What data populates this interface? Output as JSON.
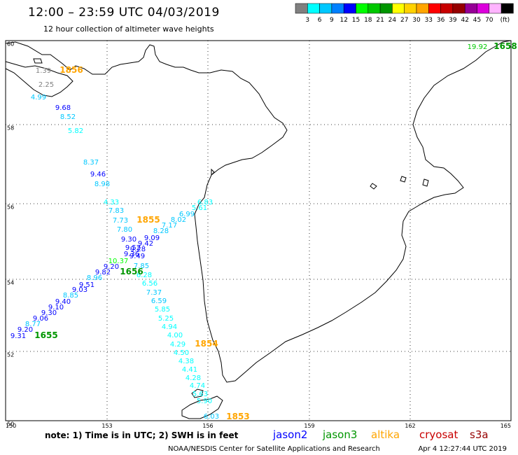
{
  "header": {
    "title": "12:00  –  23:59  UTC  04/03/2019",
    "subtitle": "12 hour collection of altimeter wave heights"
  },
  "legend": {
    "unit": "(ft)",
    "bins": [
      {
        "color": "#808080",
        "label": ""
      },
      {
        "color": "#00ffff",
        "label": "3"
      },
      {
        "color": "#00c8ff",
        "label": "6"
      },
      {
        "color": "#0080ff",
        "label": "9"
      },
      {
        "color": "#0000ff",
        "label": "12"
      },
      {
        "color": "#00ff00",
        "label": "15"
      },
      {
        "color": "#00c800",
        "label": "18"
      },
      {
        "color": "#009600",
        "label": "21"
      },
      {
        "color": "#ffff00",
        "label": "24"
      },
      {
        "color": "#ffd200",
        "label": "27"
      },
      {
        "color": "#ffa500",
        "label": "30"
      },
      {
        "color": "#ff0000",
        "label": "33"
      },
      {
        "color": "#c80000",
        "label": "36"
      },
      {
        "color": "#960000",
        "label": "39"
      },
      {
        "color": "#960096",
        "label": "42"
      },
      {
        "color": "#dc00dc",
        "label": "45"
      },
      {
        "color": "#ffb4ff",
        "label": "70"
      },
      {
        "color": "#000000",
        "label": ""
      }
    ]
  },
  "axes": {
    "lat_labels": [
      "60",
      "58",
      "56",
      "54",
      "52",
      "50"
    ],
    "lon_labels": [
      "150",
      "153",
      "156",
      "159",
      "162",
      "165"
    ]
  },
  "tracks": [
    {
      "time": "1856",
      "time_color": "#ffa500",
      "points": [
        {
          "v": "1.39",
          "c": "#808080"
        },
        {
          "v": "2.25",
          "c": "#808080"
        },
        {
          "v": "4.99",
          "c": "#00c8ff"
        },
        {
          "v": "9.68",
          "c": "#0000ff"
        },
        {
          "v": "8.52",
          "c": "#00c8ff"
        },
        {
          "v": "5.82",
          "c": "#00ffff"
        },
        {
          "v": "8.37",
          "c": "#00c8ff"
        },
        {
          "v": "9.46",
          "c": "#0000ff"
        },
        {
          "v": "8.98",
          "c": "#00c8ff"
        },
        {
          "v": "4.33",
          "c": "#00ffff"
        },
        {
          "v": "7.83",
          "c": "#00c8ff"
        },
        {
          "v": "7.73",
          "c": "#00c8ff"
        },
        {
          "v": "7.80",
          "c": "#00c8ff"
        },
        {
          "v": "9.30",
          "c": "#0000ff"
        },
        {
          "v": "9.52",
          "c": "#0000ff"
        },
        {
          "v": "9.49",
          "c": "#0000ff"
        },
        {
          "v": "7.85",
          "c": "#00c8ff"
        },
        {
          "v": "6.28",
          "c": "#00ffff"
        },
        {
          "v": "6.56",
          "c": "#00ffff"
        },
        {
          "v": "7.37",
          "c": "#00c8ff"
        },
        {
          "v": "6.59",
          "c": "#00c8ff"
        },
        {
          "v": "5.85",
          "c": "#00ffff"
        },
        {
          "v": "5.25",
          "c": "#00ffff"
        },
        {
          "v": "4.94",
          "c": "#00ffff"
        },
        {
          "v": "4.00",
          "c": "#00ffff"
        },
        {
          "v": "4.29",
          "c": "#00ffff"
        }
      ]
    },
    {
      "time": "1854",
      "time_color": "#ffa500",
      "points": [
        {
          "v": "4.50",
          "c": "#00ffff"
        },
        {
          "v": "4.38",
          "c": "#00ffff"
        },
        {
          "v": "4.41",
          "c": "#00ffff"
        },
        {
          "v": "4.28",
          "c": "#00ffff"
        },
        {
          "v": "4.74",
          "c": "#00ffff"
        },
        {
          "v": "5.63",
          "c": "#00ffff"
        },
        {
          "v": "5.90",
          "c": "#00ffff"
        },
        {
          "v": "6.03",
          "c": "#00c8ff"
        }
      ]
    },
    {
      "time": "1853",
      "time_color": "#ffa500",
      "points": []
    },
    {
      "time": "1855",
      "time_color": "#ffa500",
      "points": [
        {
          "v": "6.83",
          "c": "#00ffff"
        },
        {
          "v": "5.61",
          "c": "#00ffff"
        },
        {
          "v": "6.99",
          "c": "#00c8ff"
        },
        {
          "v": "8.02",
          "c": "#00c8ff"
        },
        {
          "v": "7.17",
          "c": "#00c8ff"
        },
        {
          "v": "8.28",
          "c": "#00c8ff"
        },
        {
          "v": "9.09",
          "c": "#0000ff"
        },
        {
          "v": "9.42",
          "c": "#0000ff"
        },
        {
          "v": "9.28",
          "c": "#0000ff"
        },
        {
          "v": "9.36",
          "c": "#0000ff"
        },
        {
          "v": "10.37",
          "c": "#00ff00"
        },
        {
          "v": "9.20",
          "c": "#0000ff"
        },
        {
          "v": "9.82",
          "c": "#0000ff"
        },
        {
          "v": "8.96",
          "c": "#00c8ff"
        }
      ]
    },
    {
      "time": "1656",
      "time_color": "#009600",
      "points": [
        {
          "v": "9.51",
          "c": "#0000ff"
        },
        {
          "v": "9.03",
          "c": "#0000ff"
        },
        {
          "v": "8.85",
          "c": "#00c8ff"
        },
        {
          "v": "9.40",
          "c": "#0000ff"
        },
        {
          "v": "9.10",
          "c": "#0000ff"
        },
        {
          "v": "9.30",
          "c": "#0000ff"
        },
        {
          "v": "9.06",
          "c": "#0000ff"
        },
        {
          "v": "8.77",
          "c": "#00c8ff"
        },
        {
          "v": "9.20",
          "c": "#0000ff"
        },
        {
          "v": "9.31",
          "c": "#0000ff"
        }
      ]
    },
    {
      "time": "1655",
      "time_color": "#009600",
      "points": []
    },
    {
      "time": "1658",
      "time_color": "#009600",
      "points": [
        {
          "v": "19.92",
          "c": "#00c800"
        }
      ]
    }
  ],
  "footer": {
    "note": "note:  1) Time is in UTC;  2) SWH is in feet",
    "satellites": [
      {
        "name": "jason2",
        "color": "#0000ff"
      },
      {
        "name": "jason3",
        "color": "#009600"
      },
      {
        "name": "altika",
        "color": "#ffa500"
      },
      {
        "name": "cryosat",
        "color": "#c80000"
      },
      {
        "name": "s3a",
        "color": "#960000"
      }
    ],
    "credit": "NOAA/NESDIS Center for Satellite Applications and Research",
    "timestamp": "Apr  4 12:27:44 UTC 2019"
  }
}
